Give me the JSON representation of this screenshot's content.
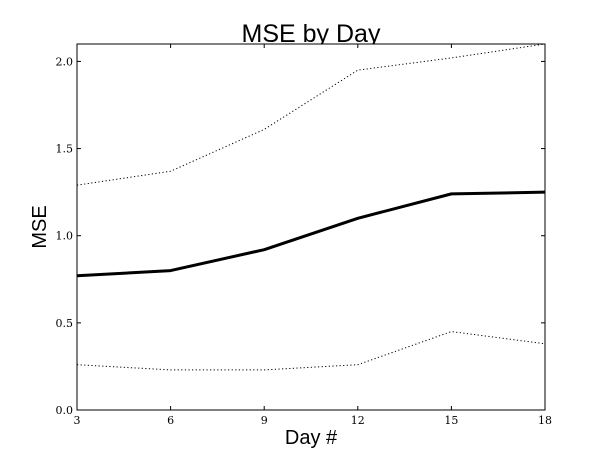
{
  "chart_data": {
    "type": "line",
    "title": "MSE by Day",
    "xlabel": "Day #",
    "ylabel": "MSE",
    "x": [
      3,
      6,
      9,
      12,
      15,
      18
    ],
    "xlim": [
      3,
      18
    ],
    "ylim": [
      0.0,
      2.1
    ],
    "xticks": [
      "3",
      "6",
      "9",
      "12",
      "15",
      "18"
    ],
    "yticks": [
      "0.0",
      "0.5",
      "1.0",
      "1.5",
      "2.0"
    ],
    "grid": false,
    "legend": "none",
    "series": [
      {
        "values": [
          0.77,
          0.8,
          0.92,
          1.1,
          1.24,
          1.25
        ],
        "style": "solid",
        "color": "#000000"
      },
      {
        "values": [
          1.29,
          1.37,
          1.61,
          1.95,
          2.02,
          2.1
        ],
        "style": "dotted",
        "color": "#000000"
      },
      {
        "values": [
          0.26,
          0.23,
          0.23,
          0.26,
          0.45,
          0.38
        ],
        "style": "dotted",
        "color": "#000000"
      }
    ]
  }
}
